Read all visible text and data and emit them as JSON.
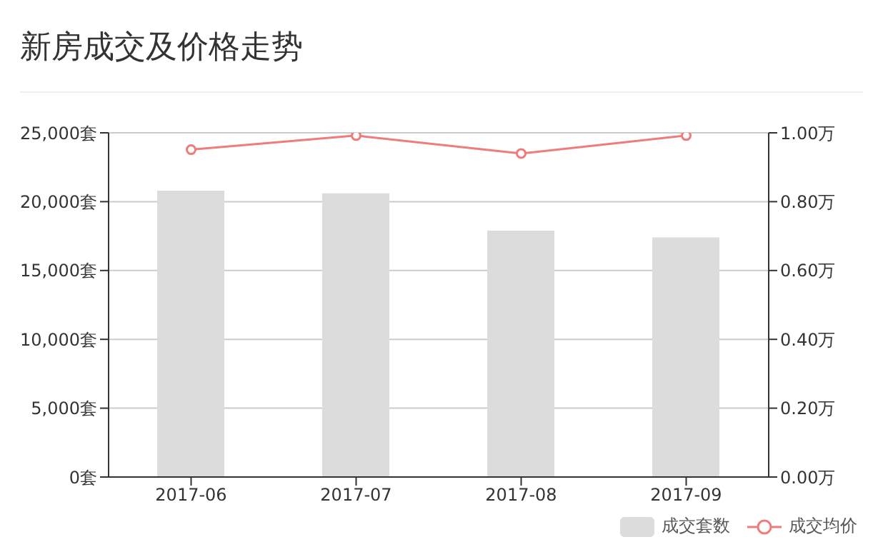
{
  "chart_data": {
    "type": "bar",
    "title": "新房成交及价格走势",
    "categories": [
      "2017-06",
      "2017-07",
      "2017-08",
      "2017-09"
    ],
    "series": [
      {
        "name": "成交套数",
        "color": "#dcdcdc",
        "values": [
          20800,
          20600,
          17900,
          17400
        ]
      },
      {
        "name": "成交均价",
        "type": "line",
        "axis": "y2",
        "color": "#f07b7b",
        "values": [
          0.951,
          0.992,
          0.94,
          0.992
        ],
        "marker": "circle"
      }
    ],
    "ylim": [
      0,
      25000
    ],
    "yticks": [
      {
        "value": 0,
        "label": "0套"
      },
      {
        "value": 5000,
        "label": "5,000套"
      },
      {
        "value": 10000,
        "label": "10,000套"
      },
      {
        "value": 15000,
        "label": "15,000套"
      },
      {
        "value": 20000,
        "label": "20,000套"
      },
      {
        "value": 25000,
        "label": "25,000套"
      }
    ],
    "y2lim": [
      0,
      1
    ],
    "y2ticks": [
      {
        "value": 0,
        "label": "0.00万"
      },
      {
        "value": 0.2,
        "label": "0.20万"
      },
      {
        "value": 0.4,
        "label": "0.40万"
      },
      {
        "value": 0.6,
        "label": "0.60万"
      },
      {
        "value": 0.8,
        "label": "0.80万"
      },
      {
        "value": 1,
        "label": "1.00万"
      }
    ],
    "grid": "y",
    "legend": "bottom right"
  }
}
